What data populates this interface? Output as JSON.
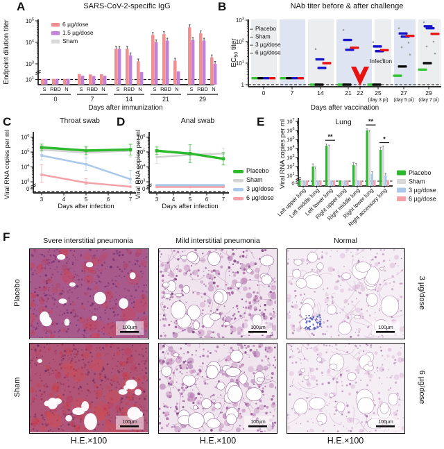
{
  "panels": {
    "A": {
      "label": "A",
      "title": "SARS-CoV-2-specific IgG"
    },
    "B": {
      "label": "B",
      "title": "NAb titer before & after challenge"
    },
    "C": {
      "label": "C",
      "title": "Throat swab"
    },
    "D": {
      "label": "D",
      "title": "Anal swab"
    },
    "E": {
      "label": "E",
      "title": "Lung"
    },
    "F": {
      "label": "F"
    }
  },
  "chart_data": [
    {
      "id": "A",
      "type": "bar",
      "title": "SARS-CoV-2-specific IgG",
      "xlabel": "Days after immunization",
      "ylabel": "Endpoint dilution titer",
      "yticks": [
        {
          "v": 100000,
          "t": "10^5"
        },
        {
          "v": 10000,
          "t": "10^4"
        },
        {
          "v": 1000,
          "t": "10^3"
        },
        {
          "v": 10,
          "t": "10^1"
        }
      ],
      "antigens": [
        "S",
        "RBD",
        "N"
      ],
      "days": [
        "0",
        "7",
        "14",
        "21",
        "29"
      ],
      "series": [
        {
          "name": "6 µg/dose",
          "color": "#f2908f",
          "values": [
            [
              12,
              12,
              12
            ],
            [
              50,
              45,
              48
            ],
            [
              5000,
              5000,
              1300
            ],
            [
              22000,
              24000,
              1400
            ],
            [
              50000,
              26000,
              2000
            ]
          ]
        },
        {
          "name": "1.5 µg/dose",
          "color": "#c181d8",
          "values": [
            [
              12,
              12,
              12
            ],
            [
              30,
              28,
              30
            ],
            [
              5000,
              2500,
              90
            ],
            [
              10000,
              12000,
              110
            ],
            [
              12500,
              12000,
              1000
            ]
          ]
        },
        {
          "name": "Sham",
          "color": "#d9d9d9",
          "values": [
            [
              10,
              10,
              10
            ],
            [
              10,
              10,
              10
            ],
            [
              10,
              10,
              10
            ],
            [
              10,
              10,
              10
            ],
            [
              10,
              10,
              10
            ]
          ]
        }
      ]
    },
    {
      "id": "B",
      "type": "scatter",
      "title": "NAb titer before & after challenge",
      "xlabel": "Days after vaccination",
      "ylabel": "EC~50~ titer",
      "annotation": "Infection",
      "yticks": [
        {
          "v": 1000,
          "t": "10^3"
        },
        {
          "v": 100,
          "t": "10^2"
        },
        {
          "v": 10,
          "t": "10^1"
        },
        {
          "v": 1,
          "t": "1"
        }
      ],
      "groups": [
        {
          "name": "Placebo",
          "color": "#35c435"
        },
        {
          "name": "Sham",
          "color": "#0a0a0a"
        },
        {
          "name": "3 µg/dose",
          "color": "#1717c9"
        },
        {
          "name": "6 µg/dose",
          "color": "#ec1212"
        }
      ],
      "days": [
        {
          "label": "0",
          "markers": [
            [
              0,
              2
            ],
            [
              1,
              2
            ],
            [
              2,
              2
            ],
            [
              3,
              2
            ]
          ]
        },
        {
          "label": "7",
          "markers": [
            [
              0,
              2
            ],
            [
              1,
              2
            ],
            [
              2,
              2
            ],
            [
              3,
              2
            ]
          ]
        },
        {
          "label": "14",
          "markers": [
            [
              0,
              1
            ],
            [
              1,
              1
            ],
            [
              2,
              15
            ],
            [
              2,
              6
            ],
            [
              3,
              10
            ]
          ],
          "dots": [
            45
          ]
        },
        {
          "label": "21",
          "markers": [
            [
              0,
              1
            ],
            [
              1,
              1
            ],
            [
              2,
              120
            ],
            [
              2,
              42
            ],
            [
              3,
              52
            ]
          ],
          "dots": [
            350
          ]
        },
        {
          "label": "22"
        },
        {
          "label": "25",
          "sub": "(day 3 pi)",
          "markers": [
            [
              0,
              1
            ],
            [
              1,
              1
            ],
            [
              2,
              60
            ],
            [
              2,
              36
            ],
            [
              3,
              40
            ]
          ],
          "dots": [
            95,
            15
          ]
        },
        {
          "label": "27",
          "sub": "(day 5 pi)",
          "markers": [
            [
              0,
              2.6
            ],
            [
              1,
              7
            ],
            [
              2,
              240
            ],
            [
              2,
              170
            ],
            [
              3,
              185
            ]
          ],
          "dots": [
            420,
            90,
            55,
            25
          ]
        },
        {
          "label": "29",
          "sub": "(day 7 pi)",
          "markers": [
            [
              0,
              5
            ],
            [
              1,
              10
            ],
            [
              2,
              520
            ],
            [
              2,
              420
            ],
            [
              3,
              230
            ]
          ],
          "dots": [
            800,
            100,
            60,
            28
          ]
        }
      ]
    },
    {
      "id": "C",
      "type": "line",
      "title": "Throat swab",
      "xlabel": "Days after infection",
      "ylabel": "Viral RNA copies per ml",
      "x": [
        3,
        5,
        7
      ],
      "xticks": [
        "3",
        "4",
        "5",
        "6",
        "7"
      ],
      "yticks": [
        {
          "v": 1000000,
          "t": "10^6"
        },
        {
          "v": 100000,
          "t": "10^5"
        },
        {
          "v": 10000,
          "t": "10^4"
        },
        {
          "v": 1000,
          "t": "10^3"
        },
        {
          "v": 0,
          "t": "0"
        }
      ],
      "series": [
        {
          "name": "Placebo",
          "color": "#2db92d",
          "width": 3.5,
          "values": [
            200000,
            125000,
            145000
          ],
          "err": [
            1.7,
            1.9,
            2.3
          ]
        },
        {
          "name": "Sham",
          "color": "#d2d2d2",
          "width": 2.5,
          "values": [
            140000,
            90000,
            120000
          ],
          "err": [
            2,
            2.3,
            2.6
          ]
        },
        {
          "name": "3 µg/dose",
          "color": "#a9c8ea",
          "width": 2.5,
          "values": [
            58000,
            15000,
            1500
          ],
          "err": [
            2,
            2.6,
            4
          ]
        },
        {
          "name": "6 µg/dose",
          "color": "#f2a2a8",
          "width": 2.5,
          "values": [
            3000,
            550,
            35
          ],
          "err": [
            5,
            3,
            1
          ]
        }
      ]
    },
    {
      "id": "D",
      "type": "line",
      "title": "Anal swab",
      "xlabel": "Days after infection",
      "ylabel": "Viral RNA copies per ml",
      "x": [
        3,
        5,
        7
      ],
      "xticks": [
        "3",
        "4",
        "5",
        "6",
        "7"
      ],
      "yticks": [
        {
          "v": 1000000,
          "t": "10^6"
        },
        {
          "v": 100000,
          "t": "10^5"
        },
        {
          "v": 10000,
          "t": "10^4"
        },
        {
          "v": 1000,
          "t": "10^3"
        },
        {
          "v": 0,
          "t": "0"
        }
      ],
      "series": [
        {
          "name": "Placebo",
          "color": "#2db92d",
          "width": 3.5,
          "values": [
            120000,
            78000,
            35000
          ],
          "err": [
            1.8,
            4,
            2.6
          ]
        },
        {
          "name": "Sham",
          "color": "#d2d2d2",
          "width": 2.5,
          "values": [
            45000,
            65000,
            80000
          ],
          "err": [
            2.6,
            2,
            2.2
          ]
        },
        {
          "name": "3 µg/dose",
          "color": "#a9c8ea",
          "width": 4,
          "values": [
            80,
            80,
            80
          ],
          "err": [
            1,
            1,
            1
          ]
        },
        {
          "name": "6 µg/dose",
          "color": "#f2a2a8",
          "width": 2.5,
          "values": [
            28,
            28,
            28
          ],
          "err": [
            1,
            1,
            1
          ]
        }
      ]
    },
    {
      "id": "E",
      "type": "grouped-bar",
      "title": "Lung",
      "ylabel": "Viral RNA copies per ml",
      "categories": [
        "Left upper lung",
        "Left middle lung",
        "Left lower lung",
        "Right upper lung",
        "Right middle lung",
        "Right lower lung",
        "Right accessory lung"
      ],
      "yticks": [
        {
          "v": 10000000,
          "t": "10^7"
        },
        {
          "v": 1000000,
          "t": "10^6"
        },
        {
          "v": 100000,
          "t": "10^5"
        },
        {
          "v": 10000,
          "t": "10^4"
        },
        {
          "v": 1000,
          "t": "10^3"
        },
        {
          "v": 100,
          "t": "10^2"
        },
        {
          "v": 10,
          "t": "10^1"
        },
        {
          "v": 0,
          "t": "0"
        }
      ],
      "series": [
        {
          "name": "Placebo",
          "color": "#2db92d",
          "values": [
            2,
            100,
            20000,
            2,
            150,
            1000000,
            7000
          ],
          "err": [
            1,
            2,
            1.6,
            1,
            1.8,
            1.5,
            2
          ]
        },
        {
          "name": "Sham",
          "color": "#d9d9d9",
          "values": [
            2,
            50,
            14000,
            2,
            120,
            650000,
            11000
          ],
          "err": [
            1,
            1.8,
            1.7,
            1,
            1.8,
            1.5,
            1.8
          ]
        },
        {
          "name": "3 µg/dose",
          "color": "#a9c8ea",
          "values": [
            2,
            2,
            2,
            2,
            2,
            15,
            10
          ],
          "err": [
            1,
            1,
            1,
            1,
            1,
            1.8,
            1.8
          ]
        },
        {
          "name": "6 µg/dose",
          "color": "#f2a2a8",
          "values": [
            2,
            2,
            2,
            2,
            2,
            2,
            2
          ],
          "err": [
            1,
            1,
            1,
            1,
            1,
            1,
            1
          ]
        }
      ],
      "sig": [
        {
          "cat": 2,
          "label": "**"
        },
        {
          "cat": 5,
          "label": "**"
        },
        {
          "cat": 6,
          "label": "*"
        }
      ]
    }
  ],
  "histology": {
    "column_titles": [
      "Svere interstitial pneumonia",
      "Mild interstitial pneumonia",
      "Normal"
    ],
    "row_labels_left": [
      "Placebo",
      "Sham"
    ],
    "row_labels_right": [
      "3 µg/dose",
      "6 µg/dose"
    ],
    "caption": "H.E.×100",
    "scale_bar_label": "100µm",
    "cells": [
      {
        "row": 0,
        "col": 0,
        "type": "severe",
        "seed": 11
      },
      {
        "row": 0,
        "col": 1,
        "type": "mild",
        "seed": 22
      },
      {
        "row": 0,
        "col": 2,
        "type": "normal",
        "seed": 33,
        "blue_cluster": true
      },
      {
        "row": 1,
        "col": 0,
        "type": "severe_red",
        "seed": 44
      },
      {
        "row": 1,
        "col": 1,
        "type": "mild",
        "seed": 55
      },
      {
        "row": 1,
        "col": 2,
        "type": "normal",
        "seed": 66
      }
    ]
  }
}
